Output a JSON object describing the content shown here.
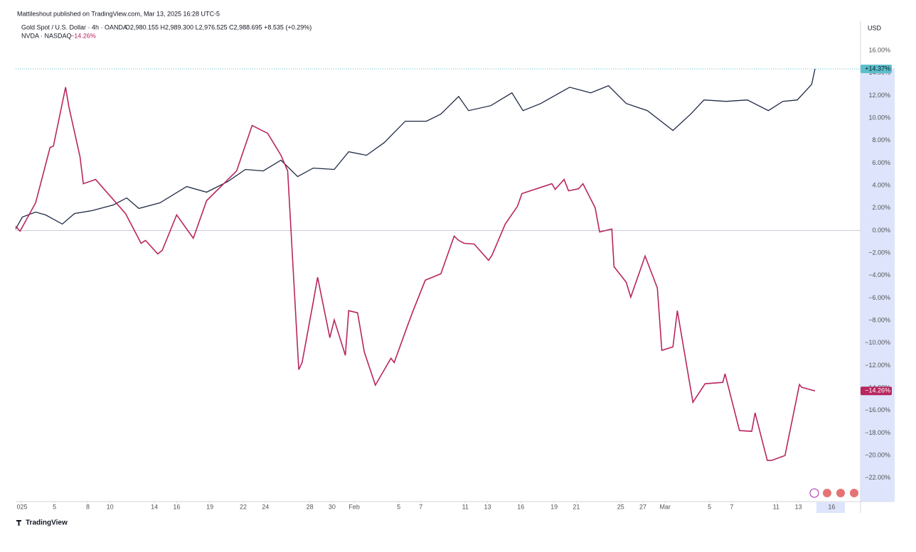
{
  "header": {
    "publisher": "Mattileshout published on TradingView.com, Mar 13, 2025 16:28 UTC-5",
    "footer": "TradingView"
  },
  "legend": {
    "symbol": "Gold Spot / U.S. Dollar · 4h · OANDA",
    "ohlc": "O2,980.155 H2,989.300 L2,976.525 C2,988.695 +8.535 (+0.29%)",
    "compare": "NVDA · NASDAQ"
  },
  "chart_data": {
    "type": "line",
    "currency": "USD",
    "grid": false,
    "zero_line": true,
    "xlim": [
      1.5,
      77.6
    ],
    "xticks": [
      {
        "value": 2,
        "label": "025"
      },
      5,
      8,
      10,
      14,
      16,
      19,
      22,
      24,
      28,
      30,
      {
        "value": 32,
        "label": "Feb"
      },
      {
        "value": 36,
        "label": "5"
      },
      {
        "value": 38,
        "label": "7"
      },
      {
        "value": 42,
        "label": "11"
      },
      {
        "value": 44,
        "label": "13"
      },
      {
        "value": 47,
        "label": "16"
      },
      {
        "value": 50,
        "label": "19"
      },
      {
        "value": 52,
        "label": "21"
      },
      {
        "value": 56,
        "label": "25"
      },
      {
        "value": 58,
        "label": "27"
      },
      {
        "value": 60,
        "label": "Mar"
      },
      {
        "value": 64,
        "label": "5"
      },
      {
        "value": 66,
        "label": "7"
      },
      {
        "value": 70,
        "label": "11"
      },
      {
        "value": 72,
        "label": "13"
      },
      {
        "value": 75,
        "label": "16"
      }
    ],
    "ylim": [
      -24.1,
      18.6
    ],
    "yticks": [
      {
        "value": 16,
        "label": "16.00%"
      },
      {
        "value": 14,
        "label": "14.00%"
      },
      {
        "value": 12,
        "label": "12.00%"
      },
      {
        "value": 10,
        "label": "10.00%"
      },
      {
        "value": 8,
        "label": "8.00%"
      },
      {
        "value": 6,
        "label": "6.00%"
      },
      {
        "value": 4,
        "label": "4.00%"
      },
      {
        "value": 2,
        "label": "2.00%"
      },
      {
        "value": 0,
        "label": "0.00%"
      },
      {
        "value": -2,
        "label": "−2.00%"
      },
      {
        "value": -4,
        "label": "−4.00%"
      },
      {
        "value": -6,
        "label": "−6.00%"
      },
      {
        "value": -8,
        "label": "−8.00%"
      },
      {
        "value": -10,
        "label": "−10.00%"
      },
      {
        "value": -12,
        "label": "−12.00%"
      },
      {
        "value": -14,
        "label": "−14.00%"
      },
      {
        "value": -16,
        "label": "−16.00%"
      },
      {
        "value": -18,
        "label": "−18.00%"
      },
      {
        "value": -20,
        "label": "−20.00%"
      },
      {
        "value": -22,
        "label": "−22.00%"
      }
    ],
    "series": [
      {
        "name": "Gold Spot / U.S. Dollar",
        "color": "#1e2a44",
        "badge_color": "#5bbfcb",
        "last_label": "+14.37%",
        "x": [
          1.5,
          2.1,
          3.3,
          4.2,
          5.7,
          6.8,
          8.4,
          10.3,
          11.5,
          12.6,
          14.5,
          16.9,
          18.7,
          20.6,
          22.2,
          23.8,
          25.4,
          26.9,
          28.3,
          30.2,
          31.5,
          33.1,
          34.7,
          36.6,
          38.5,
          39.8,
          41.4,
          42.3,
          44.3,
          46.2,
          47.2,
          48.8,
          51.4,
          53.3,
          54.9,
          56.5,
          58.4,
          60.7,
          62.3,
          63.5,
          65.5,
          67.4,
          69.3,
          70.6,
          71.9,
          72.8,
          73.2,
          73.5
        ],
        "values": [
          0.13,
          1.2,
          1.64,
          1.39,
          0.57,
          1.51,
          1.77,
          2.27,
          2.9,
          1.96,
          2.46,
          3.91,
          3.41,
          4.35,
          5.43,
          5.3,
          6.25,
          4.79,
          5.55,
          5.43,
          7.0,
          6.69,
          7.82,
          9.72,
          9.72,
          10.35,
          11.92,
          10.66,
          11.1,
          12.24,
          10.66,
          11.29,
          12.74,
          12.24,
          12.87,
          11.29,
          10.66,
          8.9,
          10.35,
          11.61,
          11.48,
          11.61,
          10.66,
          11.48,
          11.61,
          12.56,
          13.0,
          14.37
        ]
      },
      {
        "name": "NVDA",
        "color": "#b8255f",
        "badge_color": "#b8255f",
        "last_label": "−14.26%",
        "x": [
          1.5,
          1.9,
          3.3,
          4.6,
          4.9,
          6.0,
          6.3,
          7.3,
          7.6,
          8.7,
          11.4,
          12.8,
          13.2,
          14.3,
          14.7,
          16.0,
          17.5,
          18.7,
          21.4,
          22.8,
          23.3,
          24.2,
          25.4,
          26.0,
          27.0,
          27.3,
          28.3,
          28.7,
          29.8,
          30.2,
          31.2,
          31.5,
          32.3,
          32.9,
          33.9,
          35.3,
          35.6,
          36.8,
          37.3,
          38.4,
          39.8,
          41.0,
          41.4,
          41.9,
          42.8,
          44.1,
          44.4,
          45.6,
          46.7,
          47.1,
          49.8,
          50.1,
          50.9,
          51.3,
          52.2,
          52.6,
          53.7,
          54.1,
          55.2,
          55.4,
          56.5,
          56.9,
          58.2,
          59.3,
          59.7,
          60.7,
          61.1,
          62.5,
          63.6,
          65.2,
          65.4,
          66.7,
          67.8,
          68.1,
          69.2,
          69.6,
          70.8,
          72.1,
          72.3,
          73.5
        ],
        "values": [
          0.38,
          -0.06,
          2.46,
          7.38,
          7.51,
          12.74,
          10.98,
          6.56,
          4.16,
          4.54,
          1.51,
          -1.14,
          -0.88,
          -2.08,
          -1.77,
          1.39,
          -0.69,
          2.65,
          5.3,
          9.34,
          9.09,
          8.64,
          6.69,
          5.3,
          -12.37,
          -11.74,
          -6.37,
          -4.16,
          -9.53,
          -7.95,
          -11.1,
          -7.13,
          -7.32,
          -10.79,
          -13.75,
          -11.36,
          -11.74,
          -8.45,
          -7.13,
          -4.42,
          -3.85,
          -0.5,
          -0.88,
          -1.14,
          -1.2,
          -2.65,
          -2.21,
          0.57,
          2.15,
          3.28,
          4.16,
          3.66,
          4.54,
          3.53,
          3.72,
          4.16,
          2.02,
          -0.13,
          0.13,
          -3.22,
          -4.61,
          -5.93,
          -2.27,
          -5.11,
          -10.66,
          -10.35,
          -7.13,
          -15.27,
          -13.63,
          -13.5,
          -12.74,
          -17.79,
          -17.85,
          -16.21,
          -20.44,
          -20.44,
          -20.0,
          -13.69,
          -13.94,
          -14.26
        ]
      }
    ]
  }
}
